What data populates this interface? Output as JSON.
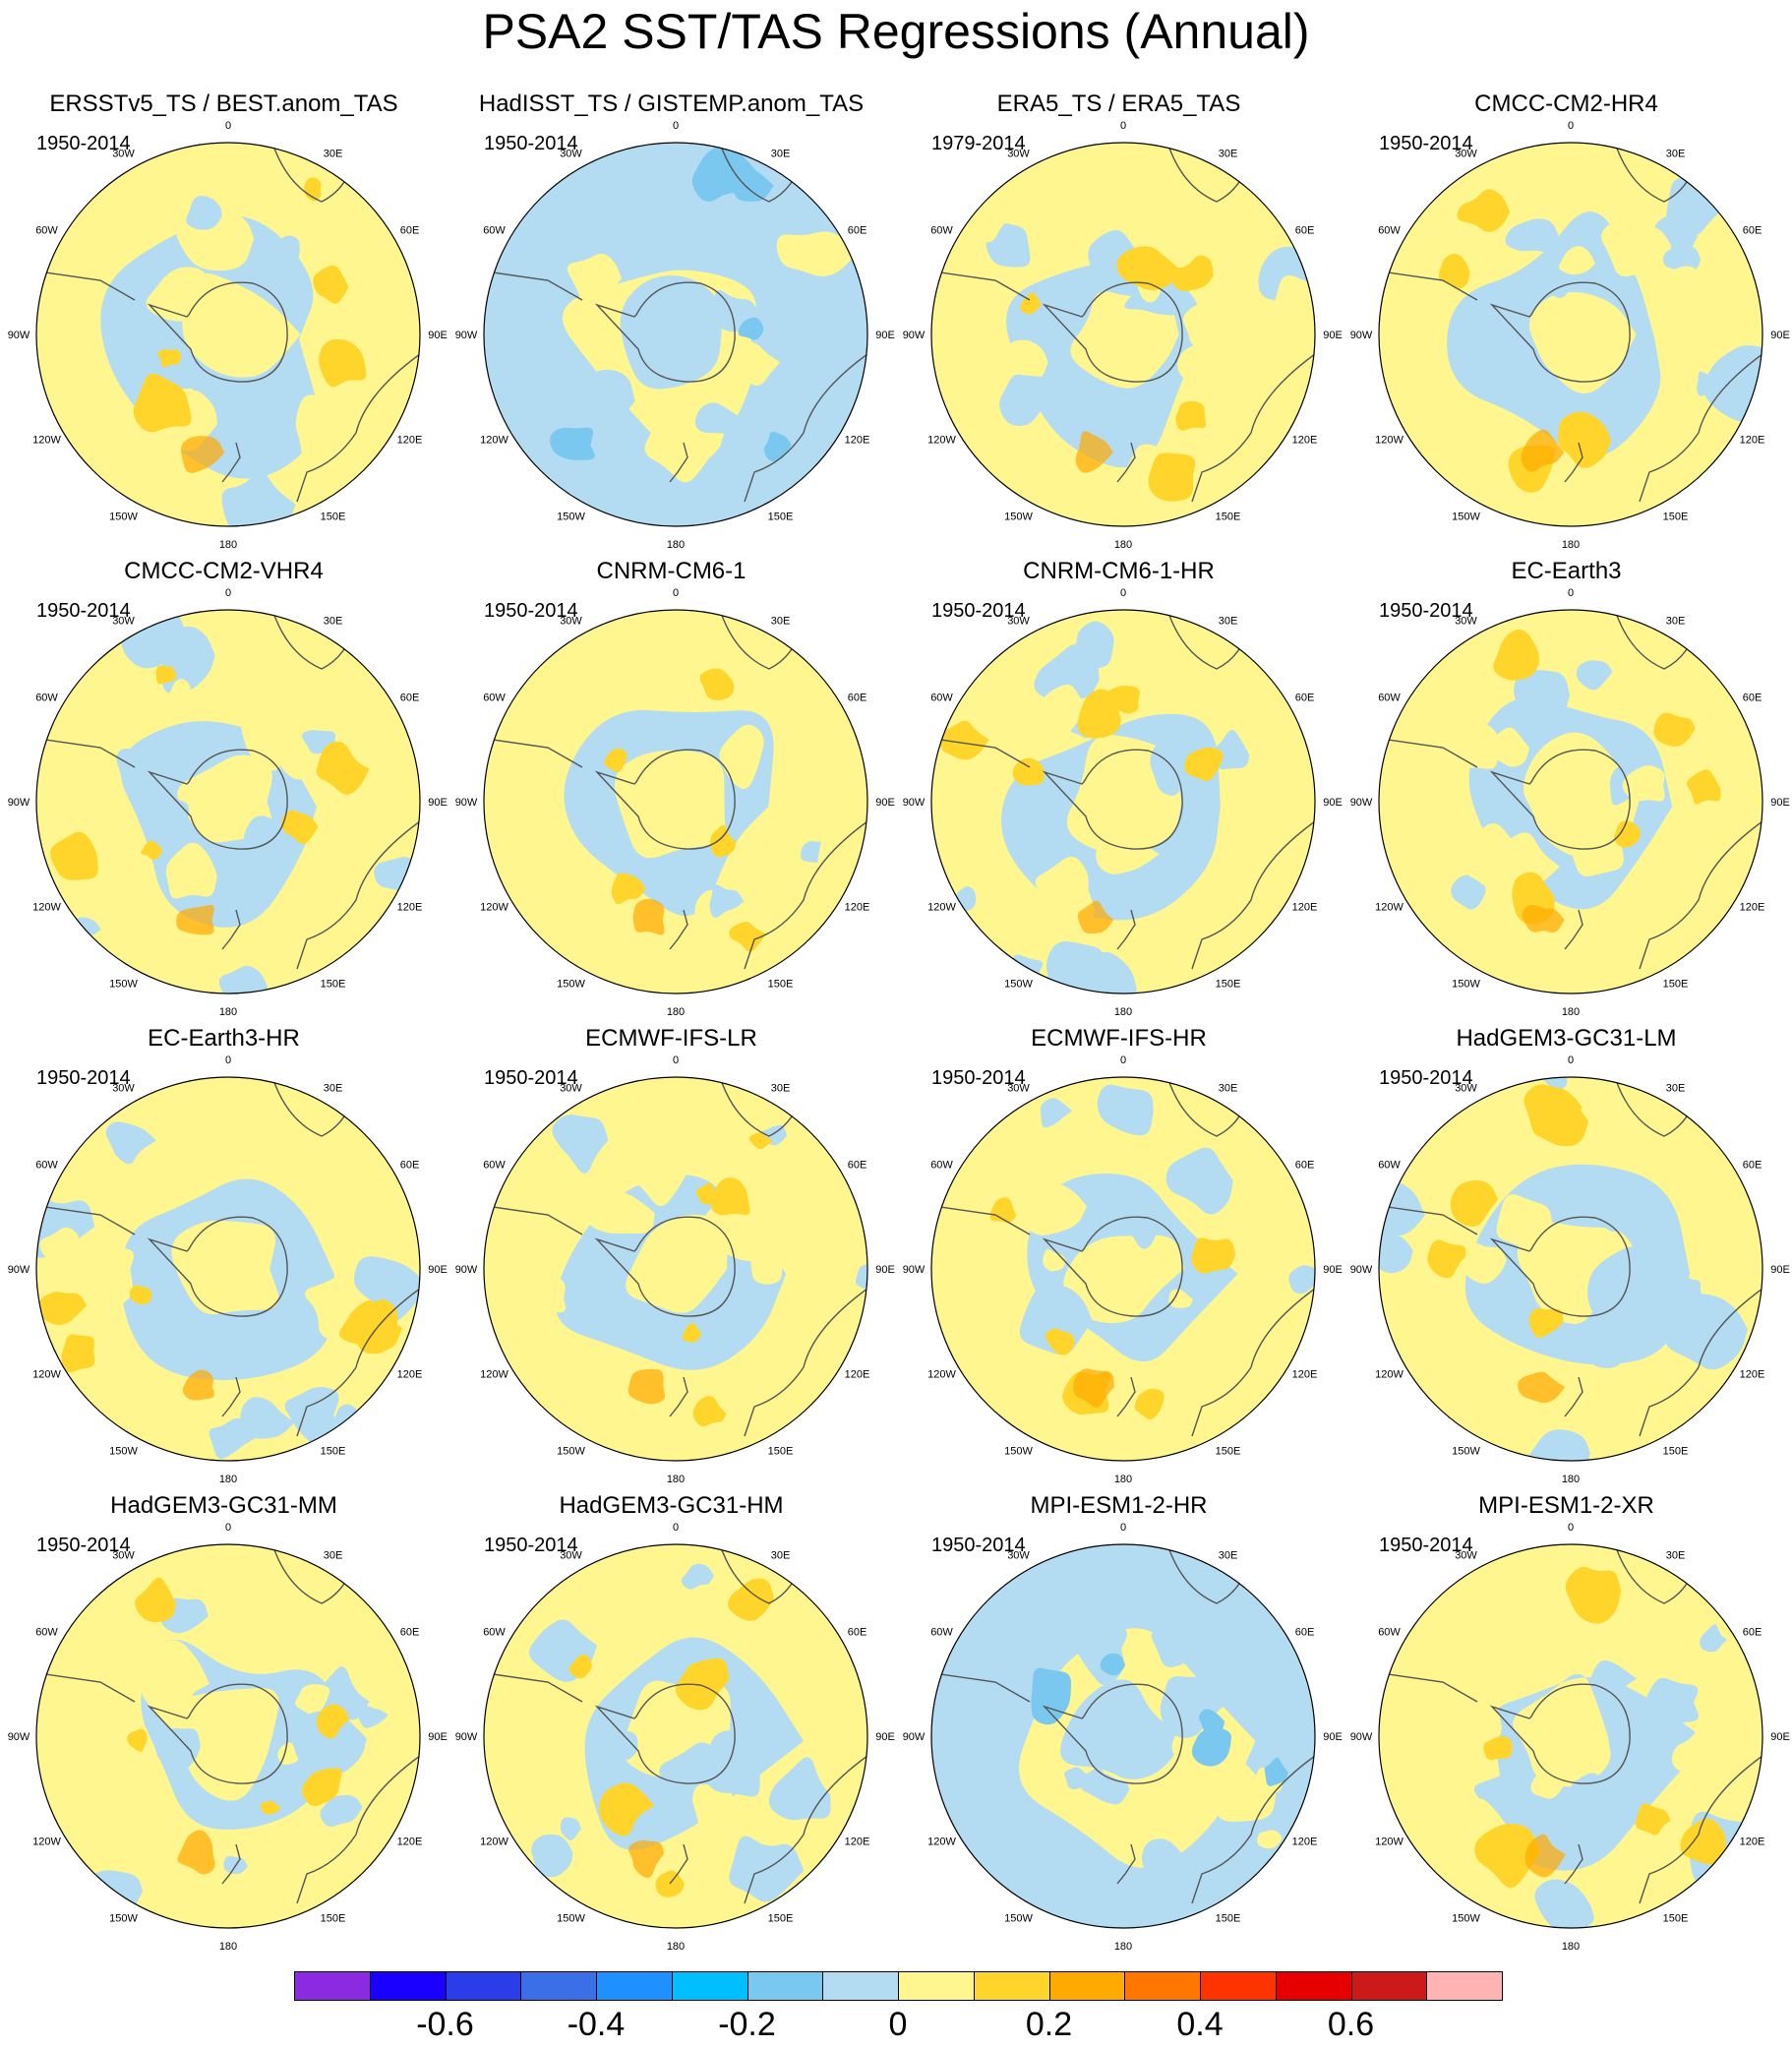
{
  "title": "PSA2 SST/TAS Regressions (Annual)",
  "longitude_labels": [
    "0",
    "30E",
    "60E",
    "90E",
    "120E",
    "150E",
    "180",
    "150W",
    "120W",
    "90W",
    "60W",
    "30W"
  ],
  "panels": [
    {
      "name": "ERSSTv5_TS / BEST.anom_TAS",
      "period": "1950-2014",
      "dominant": "warm"
    },
    {
      "name": "HadISST_TS / GISTEMP.anom_TAS",
      "period": "1950-2014",
      "dominant": "cool"
    },
    {
      "name": "ERA5_TS / ERA5_TAS",
      "period": "1979-2014",
      "dominant": "mixed"
    },
    {
      "name": "CMCC-CM2-HR4",
      "period": "1950-2014",
      "dominant": "mixed"
    },
    {
      "name": "CMCC-CM2-VHR4",
      "period": "1950-2014",
      "dominant": "mixed"
    },
    {
      "name": "CNRM-CM6-1",
      "period": "1950-2014",
      "dominant": "mixed"
    },
    {
      "name": "CNRM-CM6-1-HR",
      "period": "1950-2014",
      "dominant": "warm"
    },
    {
      "name": "EC-Earth3",
      "period": "1950-2014",
      "dominant": "mixed"
    },
    {
      "name": "EC-Earth3-HR",
      "period": "1950-2014",
      "dominant": "mixed"
    },
    {
      "name": "ECMWF-IFS-LR",
      "period": "1950-2014",
      "dominant": "mixed"
    },
    {
      "name": "ECMWF-IFS-HR",
      "period": "1950-2014",
      "dominant": "warm"
    },
    {
      "name": "HadGEM3-GC31-LM",
      "period": "1950-2014",
      "dominant": "mixed"
    },
    {
      "name": "HadGEM3-GC31-MM",
      "period": "1950-2014",
      "dominant": "warm"
    },
    {
      "name": "HadGEM3-GC31-HM",
      "period": "1950-2014",
      "dominant": "mixed"
    },
    {
      "name": "MPI-ESM1-2-HR",
      "period": "1950-2014",
      "dominant": "cool"
    },
    {
      "name": "MPI-ESM1-2-XR",
      "period": "1950-2014",
      "dominant": "mixed"
    }
  ],
  "colorbar": {
    "colors": [
      "#8a2be2",
      "#1a00ff",
      "#2b3de8",
      "#3a6fe8",
      "#1e90ff",
      "#00bfff",
      "#7ac7f0",
      "#b3dcf2",
      "#fff68f",
      "#ffd52b",
      "#ffaa00",
      "#ff7700",
      "#ff3300",
      "#e60000",
      "#cc1a1a",
      "#ffb3b3"
    ],
    "labels": [
      "-0.6",
      "-0.4",
      "-0.2",
      "0",
      "0.2",
      "0.4",
      "0.6"
    ],
    "label_values": [
      -0.6,
      -0.4,
      -0.2,
      0,
      0.2,
      0.4,
      0.6
    ]
  },
  "colors": {
    "warm_light": "#fff68f",
    "warm_mid": "#ffd52b",
    "warm_strong": "#ffaa00",
    "cool_light": "#b3dcf2",
    "cool_mid": "#7ac7f0",
    "land_outline": "#555555"
  }
}
